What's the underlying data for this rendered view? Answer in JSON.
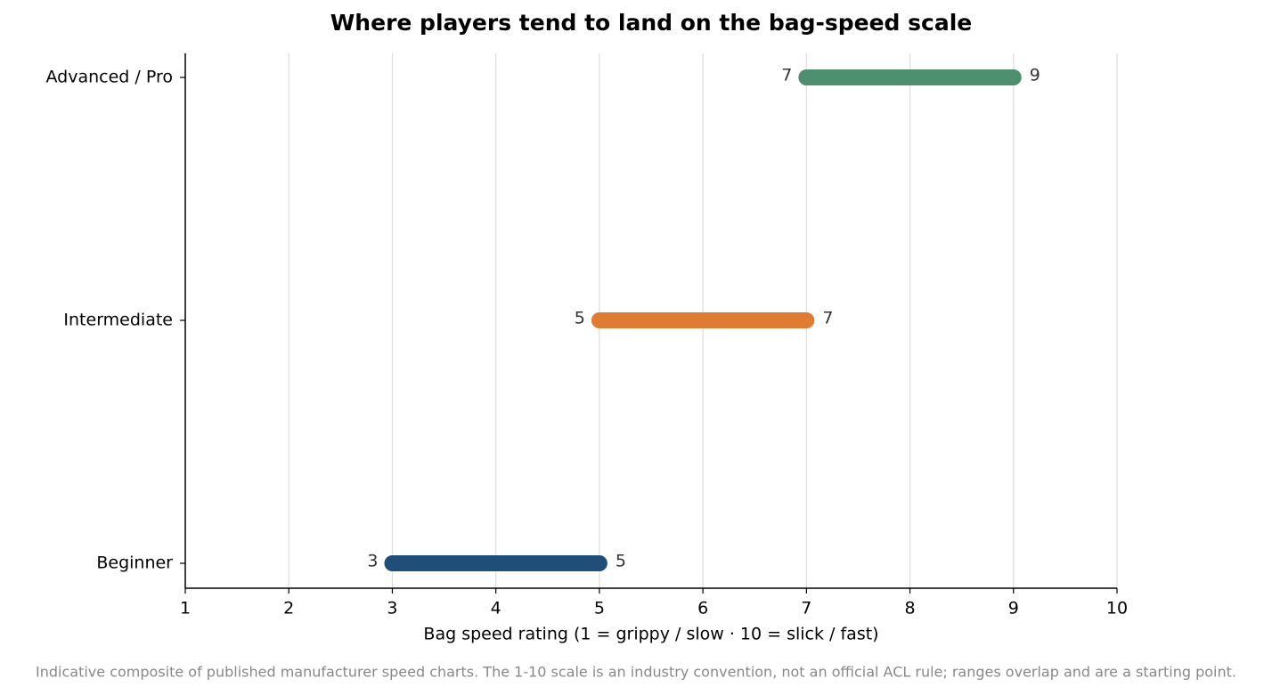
{
  "chart_data": {
    "type": "range",
    "title": "Where players tend to land on the bag-speed scale",
    "x_label": "Bag speed rating  (1 = grippy / slow  ·  10 = slick / fast)",
    "note": "Indicative composite of published manufacturer speed charts. The 1-10 scale is an industry convention, not an official ACL rule; ranges overlap and are a starting point.",
    "categories": [
      "Beginner",
      "Intermediate",
      "Advanced / Pro"
    ],
    "low": [
      3,
      5,
      7
    ],
    "high": [
      5,
      7,
      9
    ],
    "colors": [
      "#1f4e79",
      "#e07b33",
      "#4e8f6f"
    ],
    "xlim": [
      1,
      10
    ],
    "xticks": [
      1,
      2,
      3,
      4,
      5,
      6,
      7,
      8,
      9,
      10
    ],
    "grid": true
  }
}
